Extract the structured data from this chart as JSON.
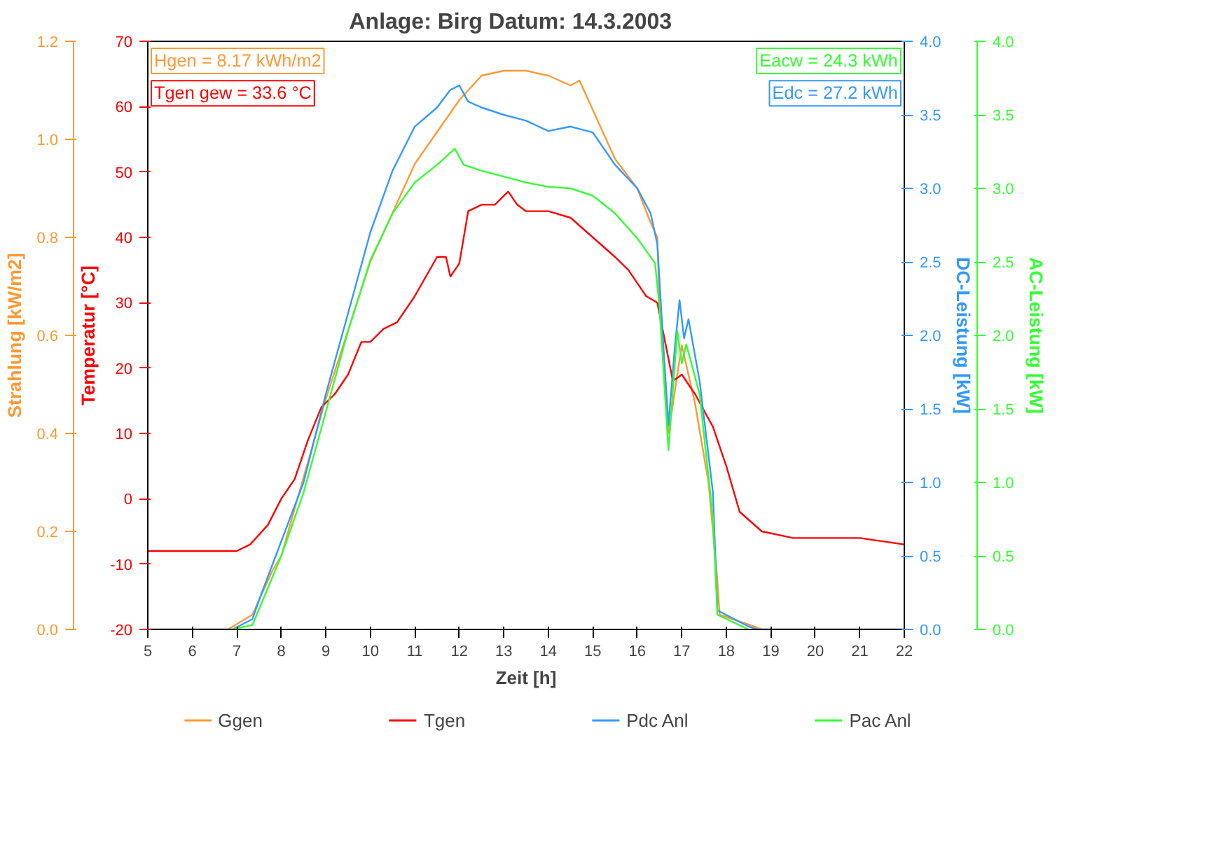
{
  "chart_data": {
    "type": "line",
    "title": "Anlage: Birg      Datum: 14.3.2003",
    "xlabel": "Zeit [h]",
    "ylabel": "Strahlung [kW/m2]",
    "y2label": "Temperatur [°C]",
    "y3label": "DC-Leistung [kW]",
    "xlim": [
      5,
      22
    ],
    "xticks": [
      5,
      6,
      7,
      8,
      9,
      10,
      11,
      12,
      13,
      14,
      15,
      16,
      17,
      18,
      19,
      20,
      21,
      22
    ],
    "ylim": [
      0,
      1.2
    ],
    "yticks": [
      {
        "value": 0,
        "label": "0.0"
      },
      0.2,
      0.4,
      0.6,
      0.8,
      {
        "value": 1,
        "label": "1.0"
      },
      1.2
    ],
    "y2lim": [
      -20,
      70
    ],
    "y2ticks": [
      -20,
      -10,
      0,
      10,
      20,
      30,
      40,
      50,
      60,
      70
    ],
    "y3lim": [
      0,
      4
    ],
    "y3ticks": [
      {
        "value": 0,
        "label": "0.0"
      },
      {
        "value": 0.5,
        "label": "0.5"
      },
      {
        "value": 1,
        "label": "1.0"
      },
      {
        "value": 1.5,
        "label": "1.5"
      },
      {
        "value": 2,
        "label": "2.0"
      },
      {
        "value": 2.5,
        "label": "2.5"
      },
      {
        "value": 3,
        "label": "3.0"
      },
      {
        "value": 3.5,
        "label": "3.5"
      },
      {
        "value": 4,
        "label": "4.0"
      }
    ],
    "grid": false,
    "legend": "bottom",
    "annotations": [
      "Hgen = 8.17 kWh/m2",
      "Tgen gew = 33.6 °C",
      "Eacw = 24.3 kWh",
      "Edc = 27.2 kWh",
      "AC-Leistung [kW]"
    ],
    "series": [
      {
        "name": "Ggen",
        "color": "#ff9933",
        "x": [
          5,
          6.8,
          7.35,
          7.8,
          8,
          9,
          10,
          11,
          12,
          12.5,
          13,
          13.5,
          14,
          14.5,
          14.7,
          15,
          15.5,
          16,
          16.3,
          16.45,
          16.5,
          16.7,
          17.0,
          17.3,
          17.6,
          17.8,
          17.85,
          18.5,
          18.8,
          22
        ],
        "values": [
          0,
          0,
          0.03,
          0.12,
          0.15,
          0.47,
          0.75,
          0.95,
          1.08,
          1.13,
          1.14,
          1.14,
          1.13,
          1.11,
          1.12,
          1.06,
          0.96,
          0.9,
          0.83,
          0.8,
          0.66,
          0.4,
          0.58,
          0.46,
          0.3,
          0.1,
          0.03,
          0.01,
          0,
          0
        ]
      },
      {
        "name": "Tgen",
        "color": "#ff0000",
        "axis": "y2",
        "x": [
          5,
          6.5,
          7,
          7.3,
          7.7,
          8,
          8.3,
          8.6,
          8.9,
          9.2,
          9.5,
          9.8,
          10,
          10.3,
          10.6,
          11,
          11.5,
          11.7,
          11.8,
          12,
          12.2,
          12.5,
          12.8,
          13.1,
          13.3,
          13.5,
          14,
          14.5,
          15,
          15.5,
          15.8,
          16,
          16.2,
          16.45,
          16.8,
          17,
          17.3,
          17.7,
          18,
          18.3,
          18.8,
          19.5,
          21,
          22
        ],
        "values": [
          -8,
          -8,
          -8,
          -7,
          -4,
          0,
          3,
          9,
          14,
          16,
          19,
          24,
          24,
          26,
          27,
          31,
          37,
          37,
          34,
          36,
          44,
          45,
          45,
          47,
          45,
          44,
          44,
          43,
          40,
          37,
          35,
          33,
          31,
          30,
          18,
          19,
          16,
          11,
          5,
          -2,
          -5,
          -6,
          -6,
          -7
        ]
      },
      {
        "name": "Pdc Anl",
        "color": "#3399ff",
        "axis": "y3",
        "x": [
          5,
          6.9,
          7.35,
          7.5,
          8,
          8.5,
          9,
          9.5,
          10,
          10.5,
          11,
          11.5,
          11.8,
          12,
          12.2,
          12.5,
          13,
          13.5,
          14,
          14.5,
          15,
          15.5,
          16,
          16.3,
          16.45,
          16.6,
          16.7,
          16.85,
          16.95,
          17.05,
          17.15,
          17.4,
          17.7,
          17.8,
          18.5,
          18.7,
          22
        ],
        "values": [
          0,
          0,
          0.07,
          0.2,
          0.6,
          1.0,
          1.6,
          2.15,
          2.7,
          3.12,
          3.42,
          3.55,
          3.67,
          3.7,
          3.59,
          3.55,
          3.5,
          3.46,
          3.39,
          3.42,
          3.38,
          3.16,
          3.0,
          2.83,
          2.62,
          1.86,
          1.39,
          1.94,
          2.24,
          1.98,
          2.11,
          1.69,
          0.93,
          0.13,
          0.02,
          0,
          0
        ]
      },
      {
        "name": "Pac Anl",
        "color": "#33ff33",
        "axis": "y3",
        "x": [
          6.9,
          7.35,
          8,
          8.5,
          9,
          9.5,
          10,
          10.5,
          11,
          11.5,
          11.9,
          12.1,
          12.5,
          13,
          13.5,
          14,
          14.5,
          15,
          15.5,
          16,
          16.4,
          16.5,
          16.7,
          16.9,
          17.0,
          17.1,
          17.4,
          17.7,
          17.8,
          18.5
        ],
        "values": [
          0,
          0.03,
          0.5,
          0.93,
          1.48,
          2.03,
          2.51,
          2.83,
          3.04,
          3.16,
          3.27,
          3.16,
          3.12,
          3.08,
          3.04,
          3.01,
          3.0,
          2.95,
          2.83,
          2.66,
          2.49,
          2.19,
          1.22,
          2.03,
          1.81,
          1.94,
          1.6,
          0.76,
          0.1,
          0
        ]
      }
    ]
  }
}
